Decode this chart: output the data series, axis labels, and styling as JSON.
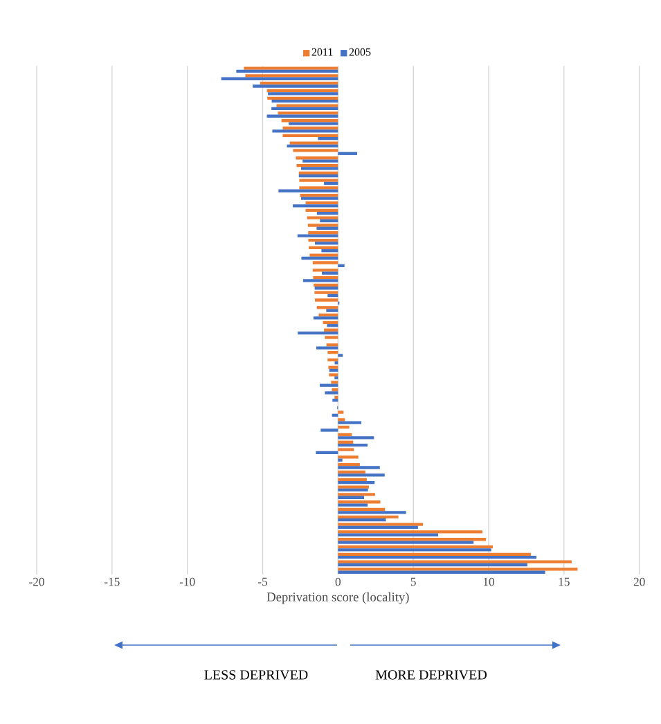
{
  "chart_data": {
    "type": "bar",
    "orientation": "horizontal",
    "categories": [
      null,
      null,
      null,
      null,
      null,
      null,
      null,
      null,
      null,
      null,
      null,
      null,
      null,
      null,
      null,
      null,
      null,
      null,
      null,
      null,
      null,
      null,
      null,
      null,
      null,
      null,
      null,
      null,
      null,
      null,
      null,
      null,
      null,
      null,
      null,
      null,
      null,
      null,
      null,
      null,
      null,
      null,
      null,
      null,
      null,
      null,
      null,
      null,
      null,
      null,
      null,
      null,
      null,
      null,
      null,
      null,
      null,
      null,
      null,
      null,
      null,
      null,
      null,
      null,
      null,
      null,
      null,
      null
    ],
    "series": [
      {
        "name": "2011",
        "color": "#ed7d31",
        "values": [
          -6.25,
          -6.15,
          -5.17,
          -4.72,
          -4.69,
          -4.08,
          -3.99,
          -3.75,
          -3.67,
          -3.67,
          -3.2,
          -2.98,
          -2.8,
          -2.75,
          -2.6,
          -2.57,
          -2.57,
          -2.52,
          -2.15,
          -2.15,
          -2.05,
          -2.0,
          -1.98,
          -1.97,
          -1.94,
          -1.88,
          -1.68,
          -1.68,
          -1.65,
          -1.62,
          -1.56,
          -1.53,
          -1.41,
          -1.28,
          -1.0,
          -0.93,
          -0.87,
          -0.77,
          -0.69,
          -0.69,
          -0.64,
          -0.6,
          -0.46,
          -0.41,
          -0.23,
          0,
          0.37,
          0.46,
          0.75,
          0.92,
          1.01,
          1.06,
          1.35,
          1.45,
          1.82,
          1.91,
          2.05,
          2.46,
          2.81,
          3.12,
          4.01,
          5.64,
          9.59,
          9.82,
          10.28,
          12.8,
          15.51,
          15.9
        ]
      },
      {
        "name": "2005",
        "color": "#4472c4",
        "values": [
          -6.75,
          -7.75,
          -5.66,
          -4.65,
          -4.4,
          -4.42,
          -4.72,
          -3.27,
          -4.36,
          -1.33,
          -3.39,
          1.27,
          -2.35,
          -2.45,
          -2.6,
          -0.93,
          -3.95,
          -2.45,
          -3.0,
          -1.4,
          -1.2,
          -1.42,
          -2.69,
          -1.53,
          -1.1,
          -2.43,
          0.43,
          -1.07,
          -2.32,
          -1.55,
          -0.69,
          0.09,
          -0.78,
          -1.63,
          -0.73,
          -2.67,
          0,
          -1.44,
          0.32,
          -0.22,
          -0.58,
          -0.23,
          -1.21,
          -0.87,
          -0.37,
          -0.05,
          -0.4,
          1.55,
          -1.15,
          2.39,
          1.96,
          -1.47,
          0.29,
          2.78,
          3.1,
          2.43,
          1.99,
          1.73,
          1.97,
          4.52,
          3.18,
          5.31,
          6.65,
          9.0,
          10.17,
          13.17,
          12.57,
          13.75
        ]
      }
    ],
    "xlim": [
      -20,
      20
    ],
    "xticks": [
      -20,
      -15,
      -10,
      -5,
      0,
      5,
      10,
      15,
      20
    ],
    "grid": "x",
    "legend": "top",
    "xlabel": "Deprivation score (locality)",
    "annotations": [
      "LESS DEPRIVED",
      "MORE DEPRIVED"
    ]
  }
}
